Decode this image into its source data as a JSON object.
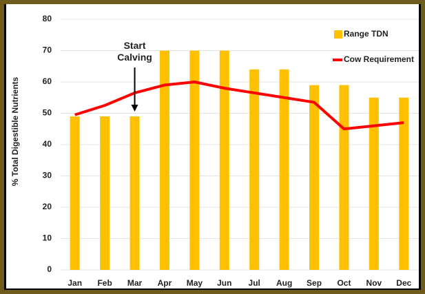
{
  "chart_data": {
    "type": "bar_line",
    "ylabel": "% Total Digestible Nutrients",
    "categories": [
      "Jan",
      "Feb",
      "Mar",
      "Apr",
      "May",
      "Jun",
      "Jul",
      "Aug",
      "Sep",
      "Oct",
      "Nov",
      "Dec"
    ],
    "series": [
      {
        "name": "Range TDN",
        "type": "bar",
        "color": "#ffc000",
        "values": [
          49,
          49,
          49,
          70,
          70,
          70,
          64,
          64,
          59,
          59,
          55,
          55
        ]
      },
      {
        "name": "Cow Requirement",
        "type": "line",
        "color": "#ff0000",
        "values": [
          49.5,
          52.5,
          56.5,
          59,
          60,
          58,
          56.5,
          55,
          53.5,
          45,
          46,
          47
        ]
      }
    ],
    "annotations": [
      {
        "text": "Start Calving",
        "category": "Mar"
      }
    ],
    "ylim": [
      0,
      80
    ],
    "yticks": [
      0,
      10,
      20,
      30,
      40,
      50,
      60,
      70,
      80
    ],
    "grid": true,
    "legend": "top-right"
  }
}
